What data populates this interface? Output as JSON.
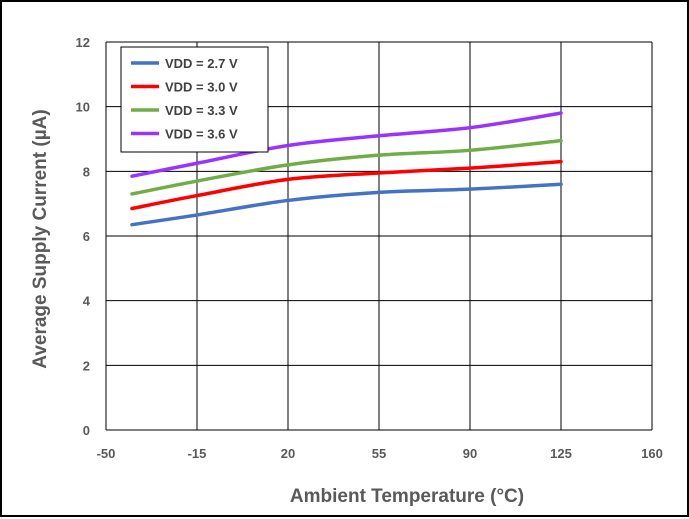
{
  "chart_data": {
    "type": "line",
    "title": "",
    "xlabel": "Ambient Temperature (°C)",
    "ylabel": "Average Supply Current (µA)",
    "xlim": [
      -50,
      160
    ],
    "ylim": [
      0,
      12
    ],
    "xticks": [
      -50,
      -15,
      20,
      55,
      90,
      125,
      160
    ],
    "yticks": [
      0,
      2,
      4,
      6,
      8,
      10,
      12
    ],
    "grid": true,
    "legend_position": "top-left",
    "x": [
      -40,
      -15,
      20,
      55,
      90,
      125
    ],
    "series": [
      {
        "name": "VDD = 2.7 V",
        "color": "#4472C4",
        "values": [
          6.35,
          6.65,
          7.1,
          7.35,
          7.45,
          7.6
        ]
      },
      {
        "name": "VDD = 3.0 V",
        "color": "#FF0000",
        "values": [
          6.85,
          7.25,
          7.75,
          7.95,
          8.1,
          8.3
        ]
      },
      {
        "name": "VDD = 3.3 V",
        "color": "#70AD47",
        "values": [
          7.3,
          7.7,
          8.2,
          8.5,
          8.65,
          8.95
        ]
      },
      {
        "name": "VDD = 3.6 V",
        "color": "#9933FF",
        "values": [
          7.85,
          8.25,
          8.8,
          9.1,
          9.35,
          9.8
        ]
      }
    ]
  }
}
